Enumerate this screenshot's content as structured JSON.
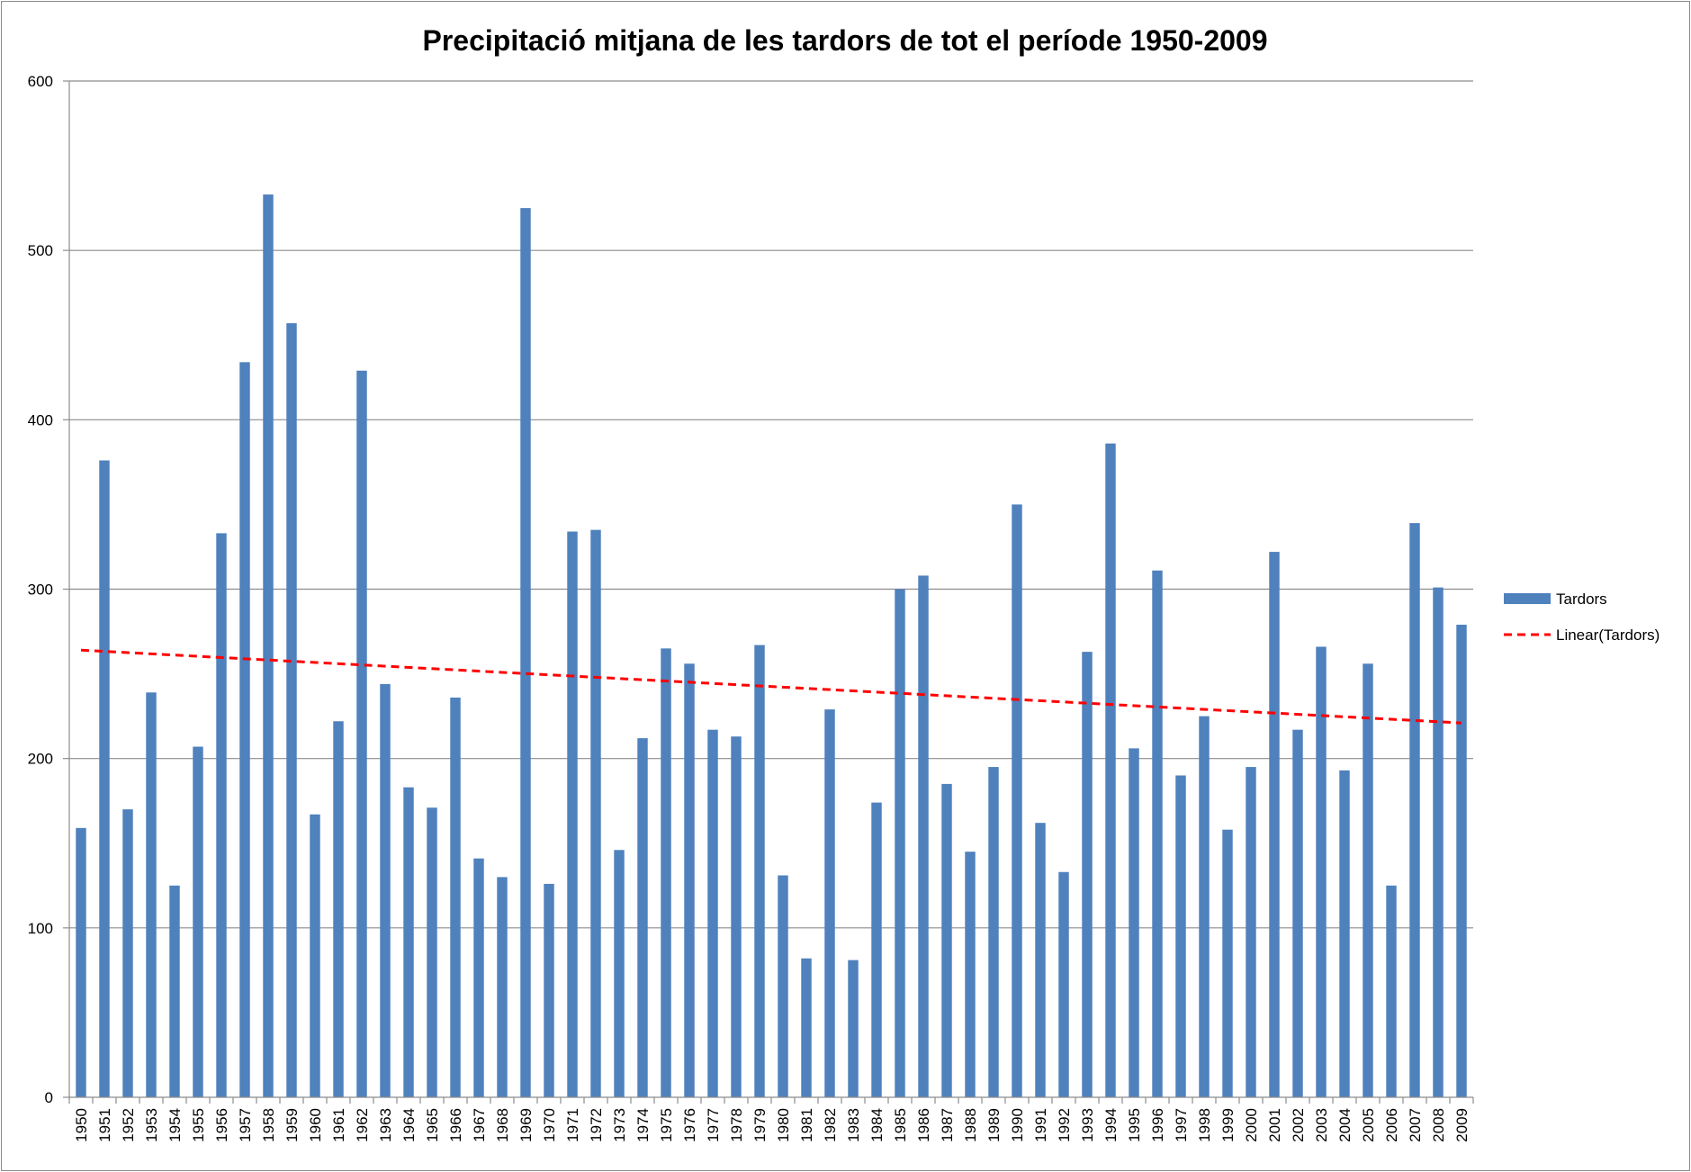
{
  "chart_data": {
    "type": "bar",
    "title": "Precipitació mitjana de les tardors de tot el període 1950-2009",
    "xlabel": "",
    "ylabel": "",
    "ylim": [
      0,
      600
    ],
    "yticks": [
      "0",
      "100",
      "200",
      "300",
      "400",
      "500",
      "600"
    ],
    "grid": true,
    "legend_position": "right",
    "categories": [
      "1950",
      "1951",
      "1952",
      "1953",
      "1954",
      "1955",
      "1956",
      "1957",
      "1958",
      "1959",
      "1960",
      "1961",
      "1962",
      "1963",
      "1964",
      "1965",
      "1966",
      "1967",
      "1968",
      "1969",
      "1970",
      "1971",
      "1972",
      "1973",
      "1974",
      "1975",
      "1976",
      "1977",
      "1978",
      "1979",
      "1980",
      "1981",
      "1982",
      "1983",
      "1984",
      "1985",
      "1986",
      "1987",
      "1988",
      "1989",
      "1990",
      "1991",
      "1992",
      "1993",
      "1994",
      "1995",
      "1996",
      "1997",
      "1998",
      "1999",
      "2000",
      "2001",
      "2002",
      "2003",
      "2004",
      "2005",
      "2006",
      "2007",
      "2008",
      "2009"
    ],
    "series": [
      {
        "name": "Tardors",
        "color": "#4f81bd",
        "values": [
          159,
          376,
          170,
          239,
          125,
          207,
          333,
          434,
          533,
          457,
          167,
          222,
          429,
          244,
          183,
          171,
          236,
          141,
          130,
          525,
          126,
          334,
          335,
          146,
          212,
          265,
          256,
          217,
          213,
          267,
          131,
          82,
          229,
          81,
          174,
          300,
          308,
          185,
          145,
          195,
          350,
          162,
          133,
          263,
          386,
          206,
          311,
          190,
          225,
          158,
          195,
          322,
          217,
          266,
          193,
          256,
          125,
          339,
          301,
          279
        ]
      }
    ],
    "trendline": {
      "name": "Linear(Tardors)",
      "type": "linear",
      "color": "#ff0000",
      "start_value": 264,
      "end_value": 221
    }
  }
}
